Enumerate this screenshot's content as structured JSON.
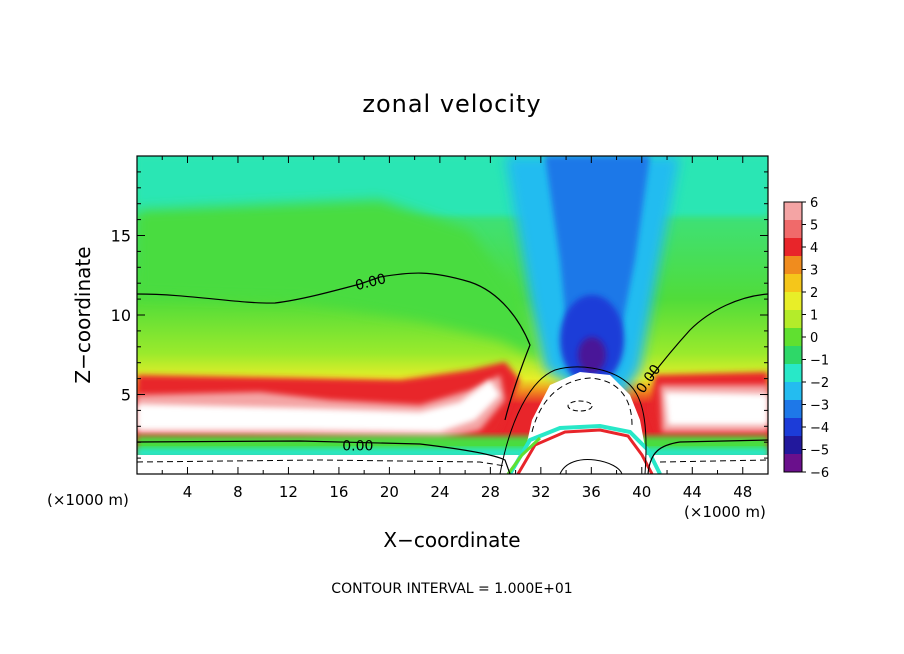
{
  "chart_data": {
    "type": "heatmap",
    "title": "zonal velocity",
    "xlabel": "X−coordinate",
    "ylabel": "Z−coordinate",
    "x_unit_left": "(×1000 m)",
    "x_unit_right": "(×1000 m)",
    "xlim": [
      0,
      50
    ],
    "ylim": [
      0,
      20
    ],
    "x_ticks": [
      4,
      8,
      12,
      16,
      20,
      24,
      28,
      32,
      36,
      40,
      44,
      48
    ],
    "y_ticks": [
      5,
      10,
      15
    ],
    "colorbar": {
      "min": -6,
      "max": 6,
      "labels": [
        "6",
        "5",
        "4",
        "3",
        "2",
        "1",
        "0",
        "−1",
        "−2",
        "−3",
        "−4",
        "−5",
        "−6"
      ],
      "colors": [
        "#f4a4a4",
        "#f06a6a",
        "#e8252a",
        "#f08c1e",
        "#f5c61a",
        "#e8ee28",
        "#b4ec2a",
        "#60e030",
        "#2ed868",
        "#28e8c8",
        "#24bcf0",
        "#1e78e8",
        "#1c3cd8",
        "#22189c",
        "#6a108c"
      ]
    },
    "contour_labels": [
      {
        "text": "0.00",
        "x": 18.5,
        "z": 12.1,
        "rotate": -14
      },
      {
        "text": "0.00",
        "x": 17.5,
        "z": 1.8,
        "rotate": 0
      },
      {
        "text": "0.00",
        "x": 40.5,
        "z": 6.0,
        "rotate": -55
      }
    ],
    "footnote": "CONTOUR INTERVAL = 1.000E+01"
  }
}
